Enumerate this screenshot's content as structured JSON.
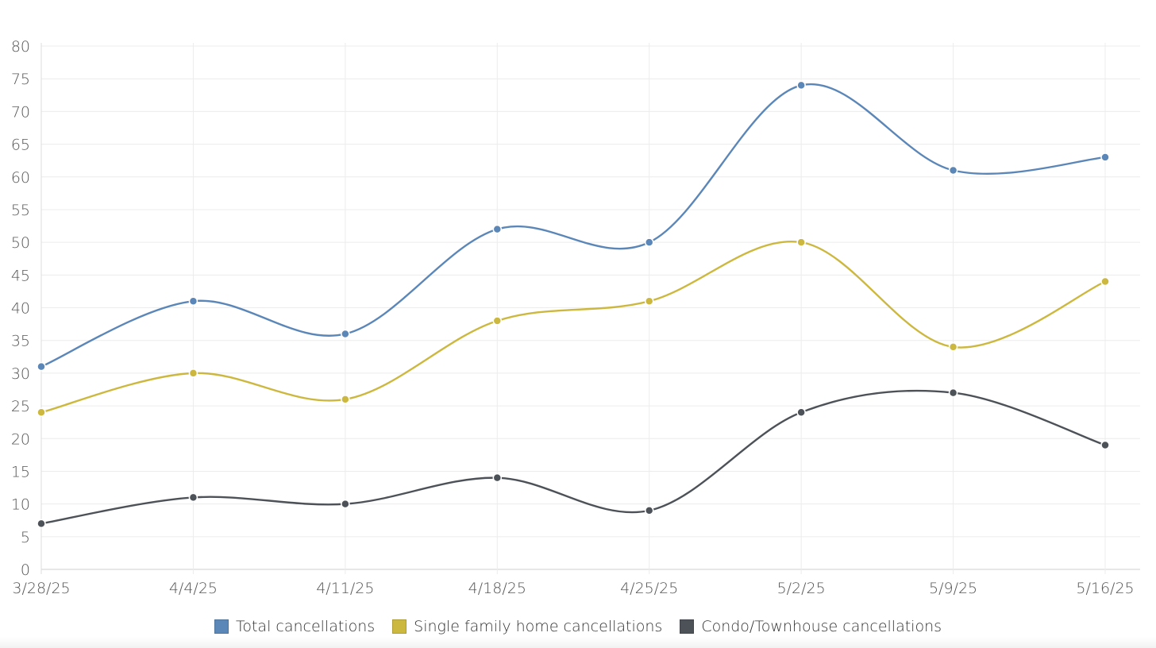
{
  "chart_data": {
    "type": "line",
    "title": "",
    "xlabel": "",
    "ylabel": "",
    "categories": [
      "3/28/25",
      "4/4/25",
      "4/11/25",
      "4/18/25",
      "4/25/25",
      "5/2/25",
      "5/9/25",
      "5/16/25"
    ],
    "ylim": [
      0,
      80
    ],
    "yticks": [
      0,
      5,
      10,
      15,
      20,
      25,
      30,
      35,
      40,
      45,
      50,
      55,
      60,
      65,
      70,
      75,
      80
    ],
    "grid": true,
    "smooth": true,
    "legend_position": "bottom",
    "series": [
      {
        "name": "Total cancellations",
        "color": "#5b86b8",
        "values": [
          31,
          41,
          36,
          52,
          50,
          74,
          61,
          63
        ]
      },
      {
        "name": "Single family home cancellations",
        "color": "#cdb83f",
        "values": [
          24,
          30,
          26,
          38,
          41,
          50,
          34,
          44
        ]
      },
      {
        "name": "Condo/Townhouse cancellations",
        "color": "#4d5259",
        "values": [
          7,
          11,
          10,
          14,
          9,
          24,
          27,
          19
        ]
      }
    ]
  }
}
